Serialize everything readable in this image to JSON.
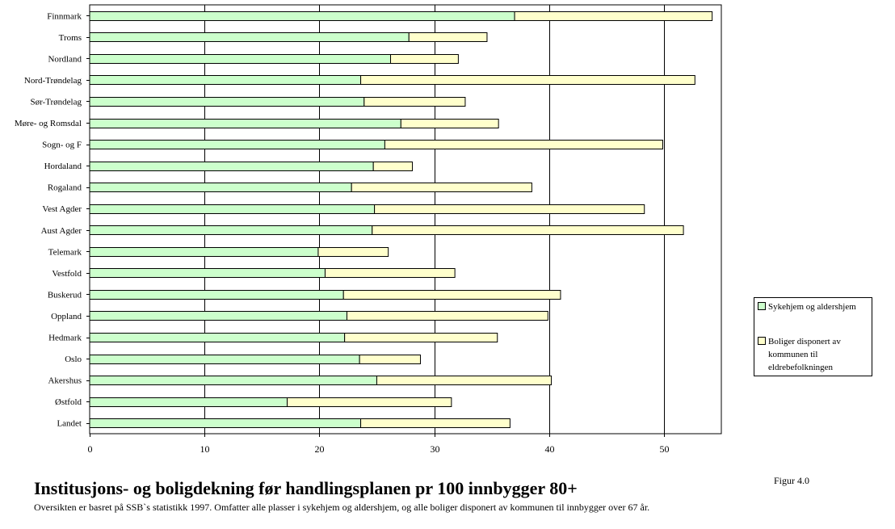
{
  "chart_data": {
    "type": "bar",
    "orientation": "horizontal",
    "stacked": true,
    "categories": [
      "Finnmark",
      "Troms",
      "Nordland",
      "Nord-Trøndelag",
      "Sør-Trøndelag",
      "Møre- og Romsdal",
      "Sogn- og F",
      "Hordaland",
      "Rogaland",
      "Vest Agder",
      "Aust Agder",
      "Telemark",
      "Vestfold",
      "Buskerud",
      "Oppland",
      "Hedmark",
      "Oslo",
      "Akershus",
      "Østfold",
      "Landet"
    ],
    "series": [
      {
        "name": "Sykehjem og aldershjem",
        "color": "#ccffcc",
        "values": [
          37.0,
          27.8,
          26.2,
          23.6,
          23.9,
          27.1,
          25.7,
          24.7,
          22.8,
          24.8,
          24.6,
          19.9,
          20.5,
          22.1,
          22.4,
          22.2,
          23.5,
          25.0,
          17.2,
          23.6
        ]
      },
      {
        "name": "Boliger disponert av kommunen til eldrebefolkningen",
        "color": "#ffffcc",
        "values": [
          17.2,
          6.8,
          5.9,
          29.1,
          8.8,
          8.5,
          24.2,
          3.4,
          15.7,
          23.5,
          27.1,
          6.1,
          11.3,
          18.9,
          17.5,
          13.3,
          5.3,
          15.2,
          14.3,
          13.0
        ]
      }
    ],
    "xlim": [
      0,
      55
    ],
    "xticks": [
      "0",
      "10",
      "20",
      "30",
      "40",
      "50"
    ],
    "grid": "vertical",
    "legend_position": "right"
  },
  "title": "Institusjons- og boligdekning før handlingsplanen pr 100 innbygger 80+",
  "subtitle": "Oversikten er basret på SSB`s statistikk 1997. Omfatter alle plasser i sykehjem og aldershjem, og alle boliger disponert av kommunen til innbygger over 67 år.",
  "figure_label": "Figur 4.0",
  "legend": {
    "item1": "Sykehjem og aldershjem",
    "item2": "Boliger disponert av kommunen til eldrebefolkningen"
  }
}
